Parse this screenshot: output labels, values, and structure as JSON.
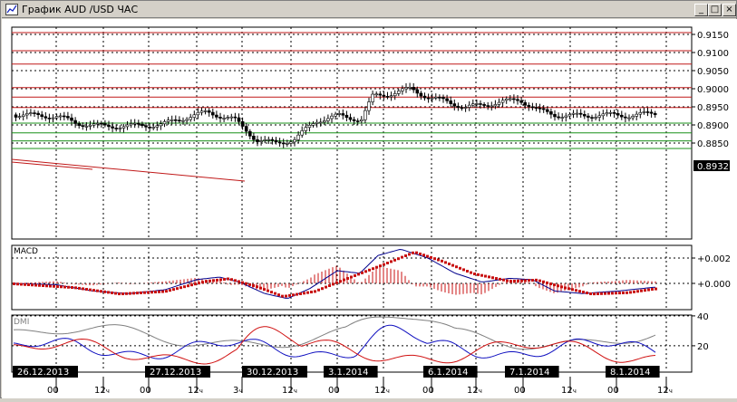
{
  "window": {
    "title": "График AUD /USD ЧАС",
    "minimize_glyph": "_",
    "maximize_glyph": "□",
    "close_glyph": "×",
    "icon": "chart-icon"
  },
  "price_panel": {
    "y_ticks": [
      "0.9150",
      "0.9100",
      "0.9050",
      "0.9000",
      "0.8950",
      "0.8900",
      "0.8850"
    ],
    "current_price": "0.8932",
    "resistance_levels": [
      0.9155,
      0.9105,
      0.9068,
      0.9003,
      0.8977,
      0.8948
    ],
    "support_levels": [
      0.8905,
      0.8878,
      0.8856,
      0.8835
    ],
    "colors": {
      "resistance": "#c01818",
      "support": "#189018",
      "trendline": "#c01818"
    }
  },
  "macd_panel": {
    "label": "MACD",
    "y_ticks": [
      "+0.002",
      "+0.000"
    ],
    "colors": {
      "macd": "#00008c",
      "signal": "#c81010",
      "histogram": "#c81010"
    }
  },
  "dmi_panel": {
    "label": "DMI",
    "y_ticks": [
      "40",
      "20"
    ],
    "colors": {
      "adx": "#808080",
      "plus_di": "#1010c0",
      "minus_di": "#d01010"
    }
  },
  "time_axis": {
    "dates": [
      "26.12.2013",
      "27.12.2013",
      "30.12.2013",
      "3.1.2014",
      "6.1.2014",
      "7.1.2014",
      "8.1.2014"
    ],
    "hours": [
      {
        "main": "00",
        "sub": ""
      },
      {
        "main": "12",
        "sub": "ч"
      },
      {
        "main": "00",
        "sub": ""
      },
      {
        "main": "12",
        "sub": "ч"
      },
      {
        "main": "3",
        "sub": "ч"
      },
      {
        "main": "12",
        "sub": "ч"
      },
      {
        "main": "00",
        "sub": ""
      },
      {
        "main": "12",
        "sub": "ч"
      },
      {
        "main": "00",
        "sub": ""
      },
      {
        "main": "12",
        "sub": "ч"
      },
      {
        "main": "00",
        "sub": ""
      },
      {
        "main": "12",
        "sub": "ч"
      },
      {
        "main": "00",
        "sub": ""
      },
      {
        "main": "12",
        "sub": "ч"
      }
    ]
  }
}
